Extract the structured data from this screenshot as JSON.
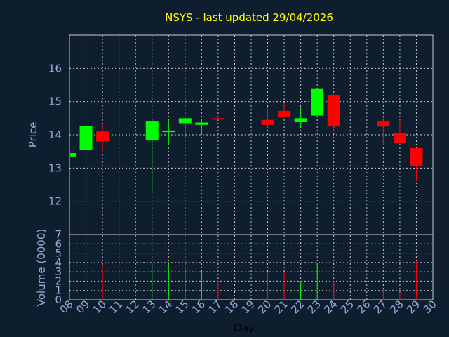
{
  "chart_data": {
    "type": "candlestick",
    "title": "NSYS - last updated 29/04/2026",
    "xlabel": "Day",
    "ylabel_price": "Price",
    "ylabel_volume": "Volume (0000)",
    "x_ticks": [
      "08",
      "09",
      "10",
      "11",
      "12",
      "13",
      "14",
      "15",
      "16",
      "17",
      "18",
      "19",
      "20",
      "21",
      "22",
      "23",
      "24",
      "25",
      "26",
      "27",
      "28",
      "29",
      "30"
    ],
    "price_ticks": [
      12,
      13,
      14,
      15,
      16
    ],
    "price_range": [
      11.0,
      17.0
    ],
    "volume_ticks": [
      0,
      1,
      2,
      3,
      4,
      5,
      6,
      7
    ],
    "volume_range": [
      0,
      7
    ],
    "grid": true,
    "up_color": "#00ff00",
    "down_color": "#ff0000",
    "candles": [
      {
        "day": "08",
        "open": 13.35,
        "close": 13.45,
        "high": 13.45,
        "low": 13.35,
        "volume": 0.0
      },
      {
        "day": "09",
        "open": 13.55,
        "close": 14.27,
        "high": 14.27,
        "low": 12.0,
        "volume": 7.0
      },
      {
        "day": "10",
        "open": 14.1,
        "close": 13.8,
        "high": 14.32,
        "low": 13.5,
        "volume": 3.8
      },
      {
        "day": "13",
        "open": 13.83,
        "close": 14.4,
        "high": 14.4,
        "low": 12.25,
        "volume": 3.8
      },
      {
        "day": "14",
        "open": 14.08,
        "close": 14.13,
        "high": 14.45,
        "low": 13.7,
        "volume": 3.9
      },
      {
        "day": "15",
        "open": 14.35,
        "close": 14.5,
        "high": 14.5,
        "low": 13.9,
        "volume": 3.6
      },
      {
        "day": "16",
        "open": 14.3,
        "close": 14.37,
        "high": 14.47,
        "low": 14.0,
        "volume": 3.0
      },
      {
        "day": "17",
        "open": 14.5,
        "close": 14.47,
        "high": 14.58,
        "low": 14.45,
        "volume": 2.0
      },
      {
        "day": "20",
        "open": 14.45,
        "close": 14.3,
        "high": 14.82,
        "low": 14.22,
        "volume": 3.0
      },
      {
        "day": "21",
        "open": 14.72,
        "close": 14.55,
        "high": 14.97,
        "low": 14.52,
        "volume": 3.0
      },
      {
        "day": "22",
        "open": 14.38,
        "close": 14.5,
        "high": 14.82,
        "low": 14.2,
        "volume": 1.9
      },
      {
        "day": "23",
        "open": 14.58,
        "close": 15.38,
        "high": 15.38,
        "low": 14.58,
        "volume": 4.0
      },
      {
        "day": "24",
        "open": 15.2,
        "close": 14.25,
        "high": 15.23,
        "low": 14.1,
        "volume": 2.0
      },
      {
        "day": "27",
        "open": 14.4,
        "close": 14.25,
        "high": 14.55,
        "low": 13.7,
        "volume": 1.2
      },
      {
        "day": "28",
        "open": 14.05,
        "close": 13.75,
        "high": 14.45,
        "low": 13.72,
        "volume": 0.8
      },
      {
        "day": "29",
        "open": 13.6,
        "close": 13.05,
        "high": 13.6,
        "low": 12.6,
        "volume": 4.1
      }
    ]
  }
}
